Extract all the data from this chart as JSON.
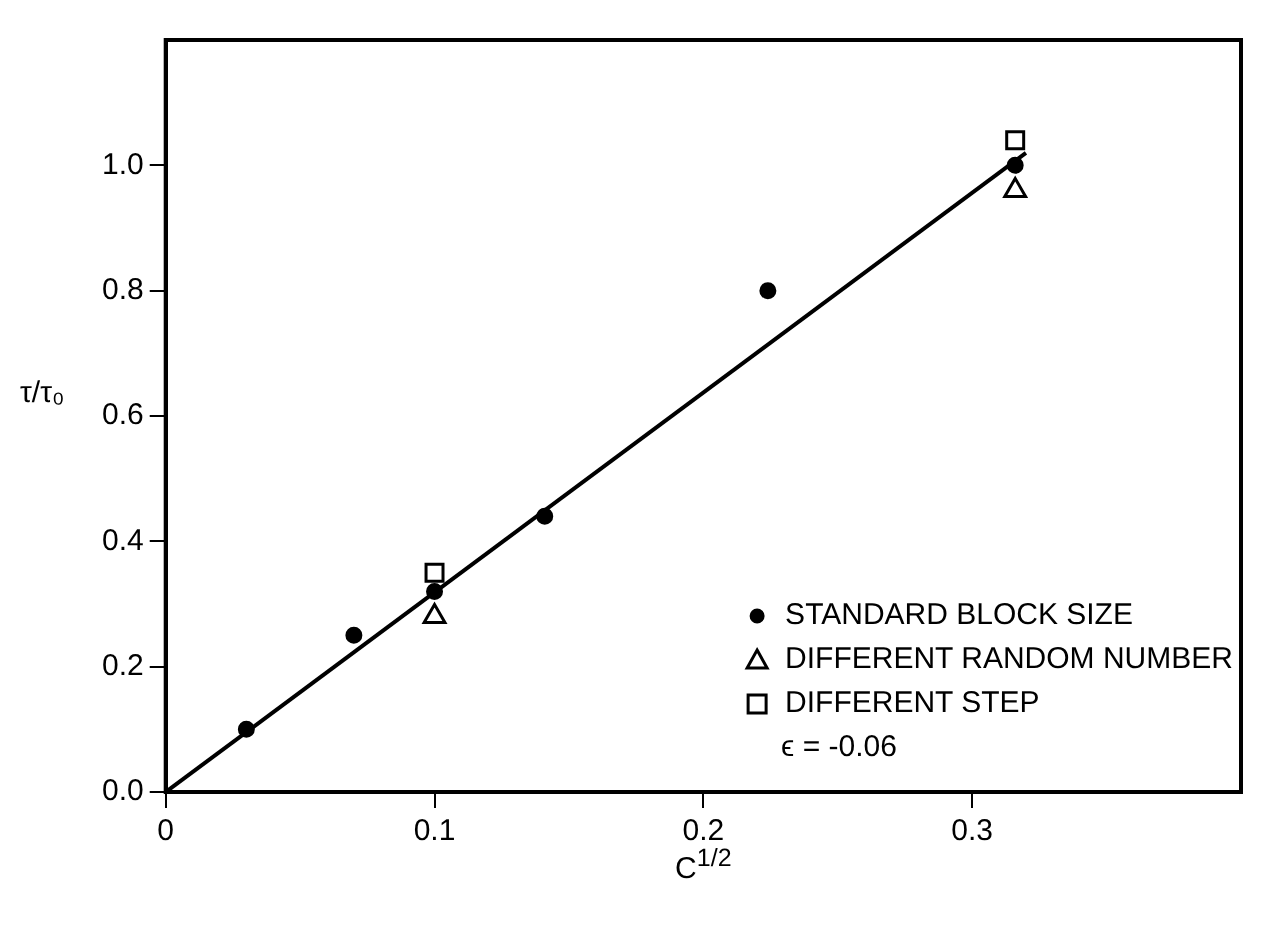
{
  "chart_data": {
    "type": "scatter",
    "xlabel": "C$^{1/2}$",
    "ylabel": "τ/τ₀",
    "xlim": [
      0,
      0.4
    ],
    "xticks": [
      0,
      0.1,
      0.2,
      0.3
    ],
    "ylim": [
      0,
      1.2
    ],
    "yticks": [
      {
        "value": 0,
        "label": "0.0"
      },
      {
        "value": 0.2,
        "label": "0.2"
      },
      {
        "value": 0.4,
        "label": "0.4"
      },
      {
        "value": 0.6,
        "label": "0.6"
      },
      {
        "value": 0.8,
        "label": "0.8"
      },
      {
        "value": 1.0,
        "label": "1.0"
      }
    ],
    "grid": false,
    "legend": "bottom right",
    "annotations": [
      "ϵ = -0.06"
    ],
    "series": [
      {
        "name": "STANDARD BLOCK SIZE",
        "color": "#000000",
        "marker": "circle",
        "x": [
          0.03,
          0.07,
          0.1,
          0.141,
          0.224,
          0.316
        ],
        "values": [
          0.1,
          0.25,
          0.32,
          0.44,
          0.8,
          1.0
        ]
      },
      {
        "name": "DIFFERENT RANDOM NUMBER",
        "color": "#000000",
        "marker": "triangle",
        "x": [
          0.1,
          0.316
        ],
        "values": [
          0.28,
          0.96
        ]
      },
      {
        "name": "DIFFERENT STEP",
        "color": "#000000",
        "marker": "square",
        "x": [
          0.1,
          0.316
        ],
        "values": [
          0.35,
          1.04
        ]
      },
      {
        "type": "line",
        "color": "#000000",
        "marker": "none",
        "line_style": "solid",
        "x": [
          0,
          0.32
        ],
        "values": [
          0,
          1.02
        ]
      }
    ]
  }
}
